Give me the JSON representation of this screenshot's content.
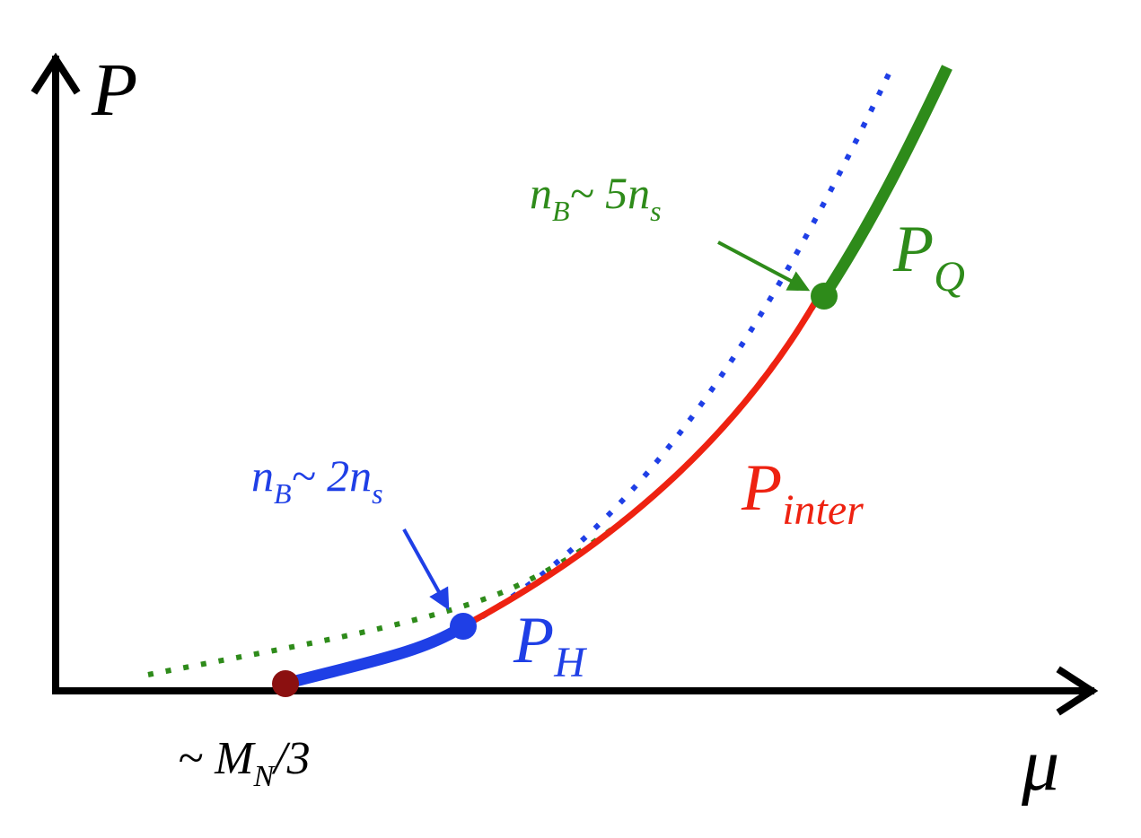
{
  "axes": {
    "y_label": "P",
    "x_label": "μ"
  },
  "labels": {
    "threshold": {
      "main": "~ M",
      "sub": "N",
      "tail": "/3"
    },
    "hadron_density": {
      "main": "n",
      "sub": "B",
      "mid": "~ 2n",
      "sub2": "s"
    },
    "quark_density": {
      "main": "n",
      "sub": "B",
      "mid": "~ 5n",
      "sub2": "s"
    },
    "hadronic": {
      "main": "P",
      "sub": "H"
    },
    "interpolated": {
      "main": "P",
      "sub": "inter"
    },
    "quark": {
      "main": "P",
      "sub": "Q"
    }
  }
}
